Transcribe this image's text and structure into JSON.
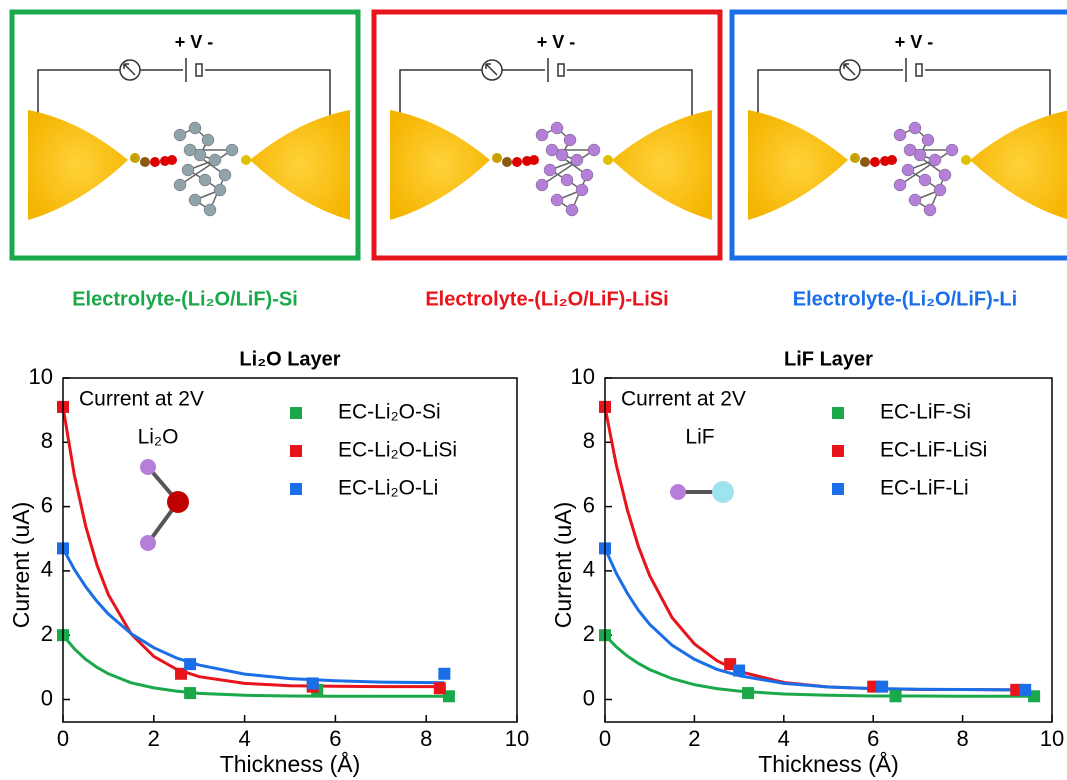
{
  "panels": [
    {
      "voltage": "+ V -",
      "label": "Electrolyte-(Li₂O/LiF)-Si",
      "color": "#1aa84a"
    },
    {
      "voltage": "+ V -",
      "label": "Electrolyte-(Li₂O/LiF)-LiSi",
      "color": "#e8141b"
    },
    {
      "voltage": "+ V -",
      "label": "Electrolyte-(Li₂O/LiF)-Li",
      "color": "#1a6fe8"
    }
  ],
  "chart_data": [
    {
      "type": "scatter",
      "title": "Li₂O Layer",
      "x_label": "Thickness (Å)",
      "y_label": "Current (uA)",
      "annotations": [
        "Current at 2V",
        "Li₂O"
      ],
      "xlim": [
        0,
        10
      ],
      "ylim": [
        -0.7,
        10
      ],
      "xticks": [
        0,
        2,
        4,
        6,
        8,
        10
      ],
      "yticks": [
        0,
        2,
        4,
        6,
        8,
        10
      ],
      "series": [
        {
          "name": "EC-Li₂O-Si",
          "color": "#1aa84a",
          "x": [
            0,
            2.8,
            5.6,
            8.5
          ],
          "values": [
            2.0,
            0.2,
            0.3,
            0.1
          ],
          "fit": {
            "x": [
              0,
              0.25,
              0.5,
              0.75,
              1,
              1.5,
              2,
              2.5,
              3,
              4,
              5,
              6,
              7,
              8.4
            ],
            "values": [
              2.0,
              1.58,
              1.25,
              1.0,
              0.8,
              0.52,
              0.36,
              0.26,
              0.19,
              0.13,
              0.11,
              0.1,
              0.1,
              0.1
            ]
          }
        },
        {
          "name": "EC-Li₂O-LiSi",
          "color": "#e8141b",
          "x": [
            0,
            2.6,
            5.5,
            8.3
          ],
          "values": [
            9.1,
            0.8,
            0.4,
            0.35
          ],
          "fit": {
            "x": [
              0,
              0.25,
              0.5,
              0.75,
              1,
              1.5,
              2,
              2.5,
              3,
              4,
              5,
              6,
              7,
              8.4
            ],
            "values": [
              9.1,
              6.99,
              5.39,
              4.18,
              3.26,
              2.04,
              1.34,
              0.94,
              0.71,
              0.5,
              0.43,
              0.41,
              0.4,
              0.4
            ]
          }
        },
        {
          "name": "EC-Li₂O-Li",
          "color": "#1a6fe8",
          "x": [
            0,
            2.8,
            5.5,
            8.4
          ],
          "values": [
            4.7,
            1.1,
            0.5,
            0.8
          ],
          "fit": {
            "x": [
              0,
              0.25,
              0.5,
              0.75,
              1,
              1.5,
              2,
              2.5,
              3,
              4,
              5,
              6,
              7,
              8.4
            ],
            "values": [
              4.7,
              4.05,
              3.51,
              3.05,
              2.66,
              2.05,
              1.61,
              1.29,
              1.07,
              0.79,
              0.65,
              0.58,
              0.54,
              0.52
            ]
          }
        }
      ]
    },
    {
      "type": "scatter",
      "title": "LiF Layer",
      "x_label": "Thickness (Å)",
      "y_label": "Current (uA)",
      "annotations": [
        "Current at 2V",
        "LiF"
      ],
      "xlim": [
        0,
        10
      ],
      "ylim": [
        -0.7,
        10
      ],
      "xticks": [
        0,
        2,
        4,
        6,
        8,
        10
      ],
      "yticks": [
        0,
        2,
        4,
        6,
        8,
        10
      ],
      "series": [
        {
          "name": "EC-LiF-Si",
          "color": "#1aa84a",
          "x": [
            0,
            3.2,
            6.5,
            9.6
          ],
          "values": [
            2.0,
            0.2,
            0.1,
            0.1
          ],
          "fit": {
            "x": [
              0,
              0.25,
              0.5,
              0.75,
              1,
              1.5,
              2,
              2.5,
              3,
              4,
              5,
              6,
              7,
              8,
              9.5
            ],
            "values": [
              2.0,
              1.64,
              1.35,
              1.12,
              0.93,
              0.65,
              0.46,
              0.34,
              0.26,
              0.17,
              0.13,
              0.11,
              0.11,
              0.1,
              0.1
            ]
          }
        },
        {
          "name": "EC-LiF-LiSi",
          "color": "#e8141b",
          "x": [
            0,
            2.8,
            6.0,
            9.2
          ],
          "values": [
            9.1,
            1.1,
            0.4,
            0.3
          ],
          "fit": {
            "x": [
              0,
              0.25,
              0.5,
              0.75,
              1,
              1.5,
              2,
              2.5,
              3,
              4,
              5,
              6,
              7,
              8,
              9.5
            ],
            "values": [
              9.1,
              7.31,
              5.89,
              4.75,
              3.85,
              2.55,
              1.73,
              1.21,
              0.87,
              0.53,
              0.39,
              0.34,
              0.31,
              0.31,
              0.3
            ]
          }
        },
        {
          "name": "EC-LiF-Li",
          "color": "#1a6fe8",
          "x": [
            0,
            3.0,
            6.2,
            9.4
          ],
          "values": [
            4.7,
            0.9,
            0.4,
            0.3
          ],
          "fit": {
            "x": [
              0,
              0.25,
              0.5,
              0.75,
              1,
              1.5,
              2,
              2.5,
              3,
              4,
              5,
              6,
              7,
              8,
              9.5
            ],
            "values": [
              4.7,
              3.93,
              3.3,
              2.77,
              2.34,
              1.69,
              1.25,
              0.94,
              0.74,
              0.5,
              0.39,
              0.34,
              0.32,
              0.31,
              0.3
            ]
          }
        }
      ]
    }
  ]
}
